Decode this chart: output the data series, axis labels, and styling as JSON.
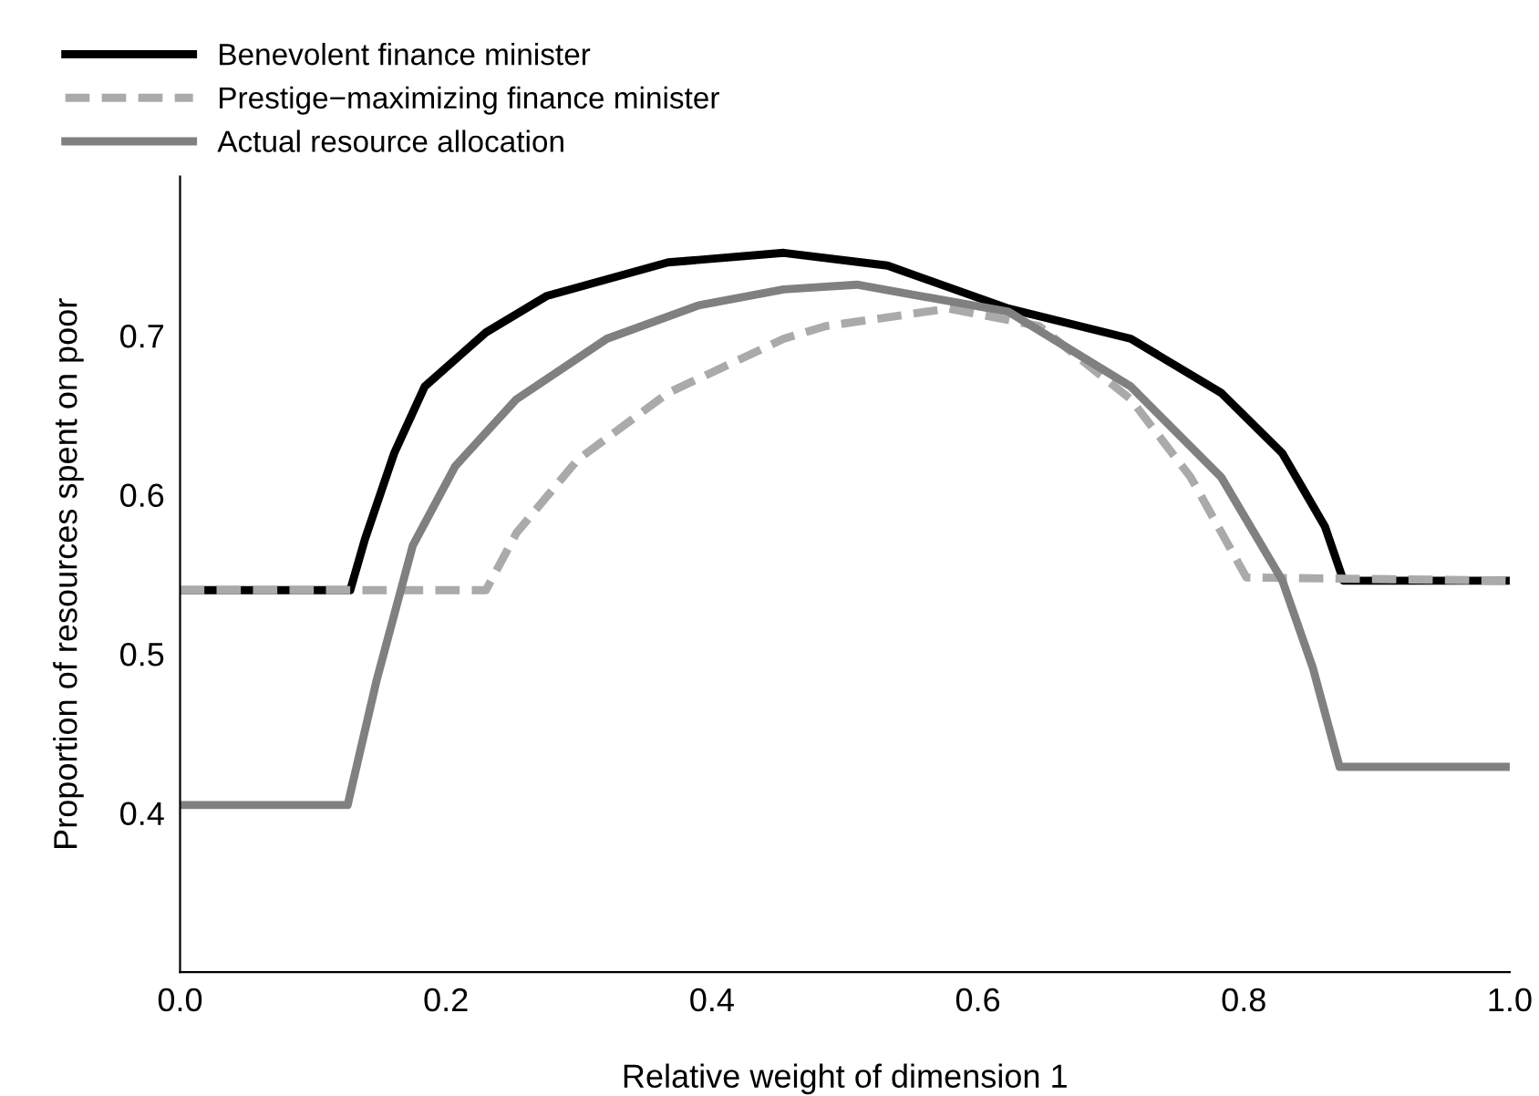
{
  "chart_data": {
    "type": "line",
    "xlabel": "Relative weight of dimension 1",
    "ylabel": "Proportion of resources spent on poor",
    "xlim": [
      0,
      1
    ],
    "xticks": [
      {
        "value": 0,
        "label": "0.0"
      },
      0.2,
      0.4,
      0.6,
      0.8,
      {
        "value": 1,
        "label": "1.0"
      }
    ],
    "ylim": [
      0.3,
      0.8
    ],
    "yticks": [
      0.4,
      0.5,
      0.6,
      0.7
    ],
    "grid": false,
    "legend": "top",
    "marker": "none",
    "series": [
      {
        "name": "Benevolent finance minister",
        "color": "#000000",
        "line_style": "solid",
        "x": [
          0,
          0.128,
          0.139,
          0.161,
          0.184,
          0.23,
          0.276,
          0.367,
          0.454,
          0.532,
          0.623,
          0.715,
          0.783,
          0.829,
          0.861,
          0.875,
          1
        ],
        "values": [
          0.54,
          0.54,
          0.572,
          0.626,
          0.668,
          0.702,
          0.725,
          0.746,
          0.752,
          0.744,
          0.717,
          0.698,
          0.664,
          0.626,
          0.58,
          0.546,
          0.546
        ]
      },
      {
        "name": "Prestige−maximizing finance minister",
        "color": "#aaaaaa",
        "line_style": "dashed",
        "x": [
          0,
          0.23,
          0.253,
          0.299,
          0.367,
          0.454,
          0.486,
          0.578,
          0.646,
          0.715,
          0.76,
          0.802,
          1
        ],
        "values": [
          0.54,
          0.54,
          0.576,
          0.622,
          0.664,
          0.698,
          0.706,
          0.717,
          0.706,
          0.66,
          0.611,
          0.548,
          0.546
        ]
      },
      {
        "name": "Actual resource allocation",
        "color": "#808080",
        "line_style": "solid",
        "x": [
          0,
          0.126,
          0.148,
          0.175,
          0.207,
          0.253,
          0.321,
          0.39,
          0.454,
          0.509,
          0.623,
          0.715,
          0.783,
          0.829,
          0.852,
          0.872,
          1
        ],
        "values": [
          0.405,
          0.405,
          0.484,
          0.568,
          0.618,
          0.66,
          0.698,
          0.719,
          0.729,
          0.732,
          0.715,
          0.668,
          0.611,
          0.546,
          0.491,
          0.429,
          0.429
        ]
      }
    ]
  }
}
